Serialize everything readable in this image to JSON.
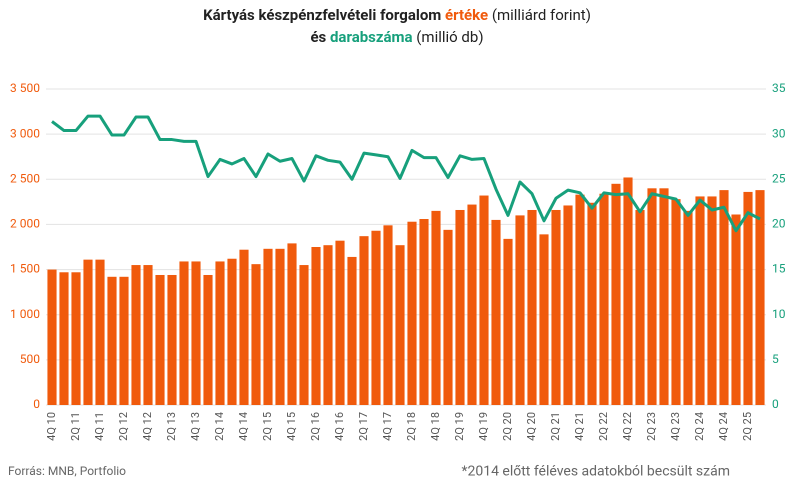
{
  "chart_data": {
    "type": "bar_line",
    "title_parts": [
      [
        "Kártyás készpénzfelvételi forgalom ",
        "értéke",
        " (milliárd forint)"
      ],
      [
        "és ",
        "darabszáma",
        " (millió db)"
      ]
    ],
    "source": "Forrás: MNB, Portfolio",
    "note": "*2014 előtt féléves adatokból becsült szám",
    "categories": [
      "4Q 10",
      null,
      "2Q 11",
      null,
      "4Q 11",
      null,
      "2Q 12",
      null,
      "4Q 12",
      null,
      "2Q 13",
      null,
      "4Q 13",
      null,
      "2Q 14",
      null,
      "4Q 14",
      null,
      "2Q 15",
      null,
      "4Q 15",
      null,
      "2Q 16",
      null,
      "4Q 16",
      null,
      "2Q 17",
      null,
      "4Q 17",
      null,
      "2Q 18",
      null,
      "4Q 18",
      null,
      "2Q 19",
      null,
      "4Q 19",
      null,
      "2Q 20",
      null,
      "4Q 20",
      null,
      "2Q 21",
      null,
      "4Q 21",
      null,
      "2Q 22",
      null,
      "4Q 22",
      null,
      "2Q 23",
      null,
      "4Q 23",
      null,
      "2Q 24",
      null,
      "4Q 24",
      null,
      "2Q 25",
      null
    ],
    "series": [
      {
        "name": "értéke",
        "color": "#f05a0c",
        "kind": "bar",
        "values": [
          1500,
          1470,
          1470,
          1610,
          1610,
          1420,
          1420,
          1550,
          1550,
          1440,
          1440,
          1590,
          1590,
          1440,
          1590,
          1620,
          1720,
          1560,
          1730,
          1730,
          1790,
          1550,
          1750,
          1770,
          1820,
          1640,
          1870,
          1930,
          1990,
          1770,
          2030,
          2060,
          2150,
          1940,
          2160,
          2220,
          2320,
          2050,
          1840,
          2100,
          2160,
          1890,
          2160,
          2210,
          2330,
          2240,
          2340,
          2450,
          2520,
          2160,
          2400,
          2400,
          2280,
          2150,
          2310,
          2310,
          2380,
          2110,
          2360,
          2380
        ]
      },
      {
        "name": "darabszáma",
        "color": "#17a07c",
        "kind": "line",
        "axis": "y2",
        "values": [
          31.4,
          30.4,
          30.4,
          32,
          32,
          29.9,
          29.9,
          31.9,
          31.9,
          29.4,
          29.4,
          29.2,
          29.2,
          25.3,
          27.2,
          26.7,
          27.3,
          25.3,
          27.8,
          27.0,
          27.3,
          24.8,
          27.6,
          27.1,
          26.9,
          25.0,
          27.9,
          27.7,
          27.5,
          25.1,
          28.2,
          27.4,
          27.4,
          25.2,
          27.6,
          27.2,
          27.3,
          23.9,
          21.0,
          24.7,
          23.4,
          20.4,
          22.9,
          23.8,
          23.5,
          21.8,
          23.5,
          23.3,
          23.4,
          21.4,
          23.4,
          23.1,
          22.8,
          21.0,
          22.7,
          21.6,
          21.9,
          19.3,
          21.3,
          20.6
        ]
      }
    ],
    "ylim": [
      0,
      3500
    ],
    "yticks": [
      0,
      500,
      {
        "value": 1000,
        "label": "1 000"
      },
      {
        "value": 1500,
        "label": "1 500"
      },
      {
        "value": 2000,
        "label": "2 000"
      },
      {
        "value": 2500,
        "label": "2 500"
      },
      {
        "value": 3000,
        "label": "3 000"
      },
      {
        "value": 3500,
        "label": "3 500"
      }
    ],
    "y2lim": [
      0,
      35
    ],
    "y2ticks": [
      0,
      5,
      10,
      15,
      20,
      25,
      30,
      35
    ],
    "grid": true
  }
}
